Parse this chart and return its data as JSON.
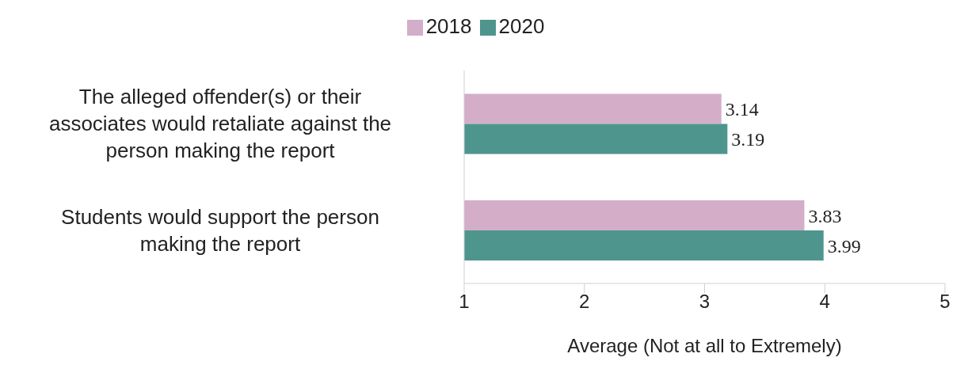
{
  "chart_data": {
    "type": "bar",
    "orientation": "horizontal",
    "xlabel": "Average (Not at all to Extremely)",
    "categories": [
      "The alleged offender(s) or their associates would retaliate against the person making the report",
      "Students would support the person making the report"
    ],
    "series": [
      {
        "name": "2018",
        "color": "#d4aec9",
        "values": [
          3.14,
          3.83
        ]
      },
      {
        "name": "2020",
        "color": "#4e958e",
        "values": [
          3.19,
          3.99
        ]
      }
    ],
    "xlim": [
      1,
      5
    ],
    "xticks": [
      1,
      2,
      3,
      4,
      5
    ],
    "data_labels": true,
    "legend": "top",
    "grid": false
  }
}
